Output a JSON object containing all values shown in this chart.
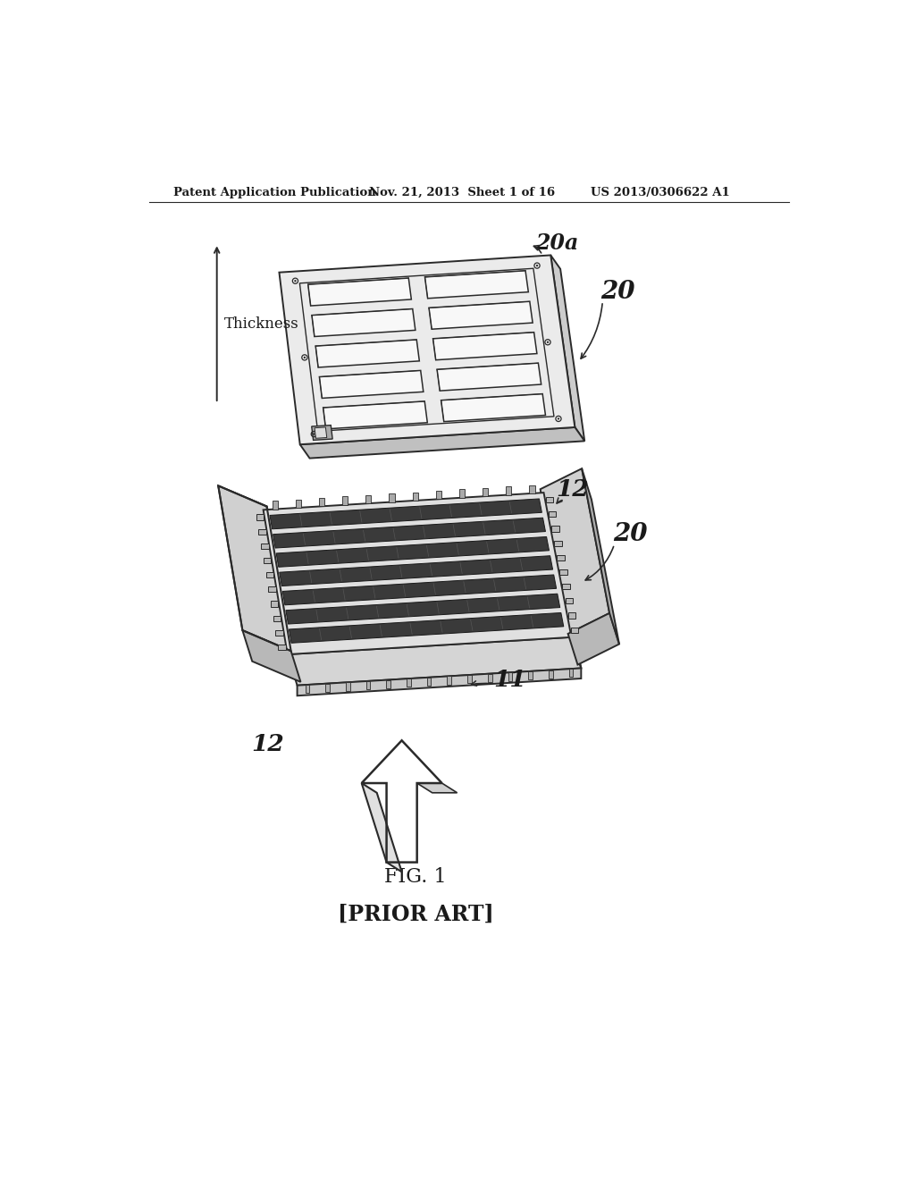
{
  "bg_color": "#ffffff",
  "header_left": "Patent Application Publication",
  "header_mid": "Nov. 21, 2013  Sheet 1 of 16",
  "header_right": "US 2013/0306622 A1",
  "fig_label": "FIG. 1",
  "prior_art": "[PRIOR ART]",
  "thickness_label": "Thickness",
  "label_20a": "20a",
  "label_20_top": "20",
  "label_20_bot": "20",
  "label_12_top": "12",
  "label_12_bot": "12",
  "label_11": "11",
  "col_dark": "#1a1a1a",
  "col_line": "#2a2a2a",
  "col_fill_light": "#f0f0f0",
  "col_fill_mid": "#d8d8d8",
  "col_fill_dark": "#888888",
  "col_hatch": "#555555"
}
